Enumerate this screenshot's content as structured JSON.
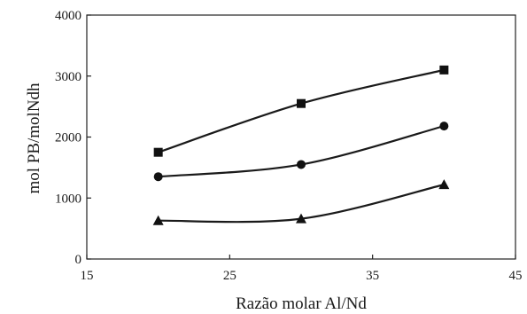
{
  "chart_data": {
    "type": "line",
    "title": "",
    "xlabel": "Razão molar Al/Nd",
    "ylabel": "mol PB/molNdh",
    "xlim": [
      15,
      45
    ],
    "ylim": [
      0,
      4000
    ],
    "xticks": [
      "15",
      "25",
      "35",
      "45"
    ],
    "yticks": [
      "0",
      "1000",
      "2000",
      "3000",
      "4000"
    ],
    "grid": false,
    "x": [
      20,
      30,
      40
    ],
    "series": [
      {
        "marker": "square",
        "values": [
          1750,
          2550,
          3100
        ]
      },
      {
        "marker": "circle",
        "values": [
          1350,
          1550,
          2180
        ]
      },
      {
        "marker": "triangle",
        "values": [
          630,
          660,
          1220
        ]
      }
    ]
  }
}
